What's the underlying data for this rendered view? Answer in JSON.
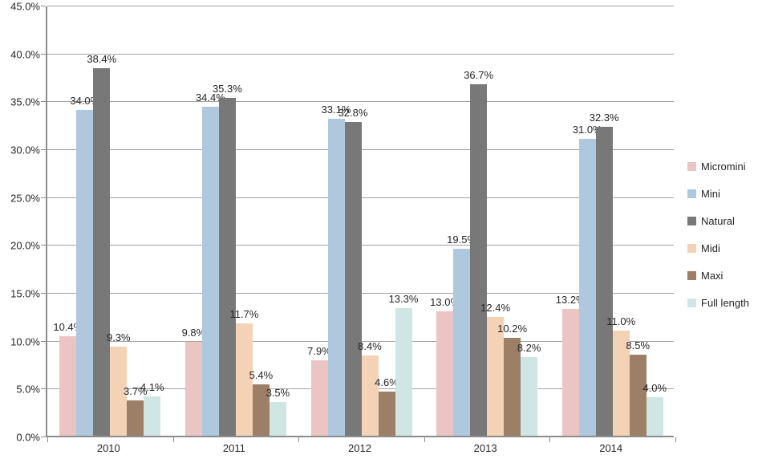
{
  "chart_data": {
    "type": "bar",
    "title": "",
    "xlabel": "",
    "ylabel": "",
    "categories": [
      "2010",
      "2011",
      "2012",
      "2013",
      "2014"
    ],
    "series": [
      {
        "name": "Micromini",
        "color": "#eac5c3",
        "values": [
          10.4,
          9.8,
          7.9,
          13.0,
          13.2
        ]
      },
      {
        "name": "Mini",
        "color": "#afc8de",
        "values": [
          34.0,
          34.4,
          33.1,
          19.5,
          31.0
        ]
      },
      {
        "name": "Natural",
        "color": "#787878",
        "values": [
          38.4,
          35.3,
          32.8,
          36.7,
          32.3
        ]
      },
      {
        "name": "Midi",
        "color": "#f4d2b6",
        "values": [
          9.3,
          11.7,
          8.4,
          12.4,
          11.0
        ]
      },
      {
        "name": "Maxi",
        "color": "#9d7f67",
        "values": [
          3.7,
          5.4,
          4.6,
          10.2,
          8.5
        ]
      },
      {
        "name": "Full length",
        "color": "#cfe6e5",
        "values": [
          4.1,
          3.5,
          13.3,
          8.2,
          4.0
        ]
      }
    ],
    "data_labels": [
      [
        "10.4%",
        "9.8%",
        "7.9%",
        "13.0%",
        "13.2%"
      ],
      [
        "34.0%",
        "34.4%",
        "33.1%",
        "19.5%",
        "31.0%"
      ],
      [
        "38.4%",
        "35.3%",
        "32.8%",
        "36.7%",
        "32.3%"
      ],
      [
        "9.3%",
        "11.7%",
        "8.4%",
        "12.4%",
        "11.0%"
      ],
      [
        "3.7%",
        "5.4%",
        "4.6%",
        "10.2%",
        "8.5%"
      ],
      [
        "4.1%",
        "3.5%",
        "13.3%",
        "8.2%",
        "4.0%"
      ]
    ],
    "yticks": [
      "45.0%",
      "40.0%",
      "35.0%",
      "30.0%",
      "25.0%",
      "20.0%",
      "15.0%",
      "10.0%",
      "5.0%",
      "0.0%"
    ],
    "ylim": [
      0,
      45
    ],
    "ytick_step": 5,
    "grid": true,
    "legend_position": "right",
    "colors": {
      "gridline": "#a3a3a3",
      "axis": "#8c8c8c",
      "text": "#262626",
      "background": "#ffffff"
    }
  }
}
